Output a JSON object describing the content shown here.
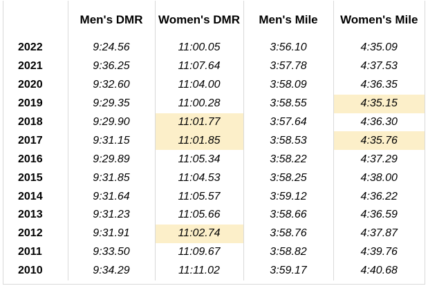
{
  "table": {
    "headers": [
      "",
      "Men's DMR",
      "Women's DMR",
      "Men's Mile",
      "Women's Mile"
    ],
    "highlight_color": "#fcefc9",
    "rows": [
      {
        "year": "2022",
        "mens_dmr": "9:24.56",
        "womens_dmr": "11:00.05",
        "mens_mile": "3:56.10",
        "womens_mile": "4:35.09"
      },
      {
        "year": "2021",
        "mens_dmr": "9:36.25",
        "womens_dmr": "11:07.64",
        "mens_mile": "3:57.78",
        "womens_mile": "4:37.53"
      },
      {
        "year": "2020",
        "mens_dmr": "9:32.60",
        "womens_dmr": "11:04.00",
        "mens_mile": "3:58.09",
        "womens_mile": "4:36.35"
      },
      {
        "year": "2019",
        "mens_dmr": "9:29.35",
        "womens_dmr": "11:00.28",
        "mens_mile": "3:58.55",
        "womens_mile": "4:35.15",
        "highlight": [
          "womens_mile"
        ]
      },
      {
        "year": "2018",
        "mens_dmr": "9:29.90",
        "womens_dmr": "11:01.77",
        "mens_mile": "3:57.64",
        "womens_mile": "4:36.30",
        "highlight": [
          "womens_dmr"
        ]
      },
      {
        "year": "2017",
        "mens_dmr": "9:31.15",
        "womens_dmr": "11:01.85",
        "mens_mile": "3:58.53",
        "womens_mile": "4:35.76",
        "highlight": [
          "womens_dmr",
          "womens_mile"
        ]
      },
      {
        "year": "2016",
        "mens_dmr": "9:29.89",
        "womens_dmr": "11:05.34",
        "mens_mile": "3:58.22",
        "womens_mile": "4:37.29"
      },
      {
        "year": "2015",
        "mens_dmr": "9:31.85",
        "womens_dmr": "11:04.53",
        "mens_mile": "3:58.25",
        "womens_mile": "4:38.00"
      },
      {
        "year": "2014",
        "mens_dmr": "9:31.64",
        "womens_dmr": "11:05.57",
        "mens_mile": "3:59.12",
        "womens_mile": "4:36.22"
      },
      {
        "year": "2013",
        "mens_dmr": "9:31.23",
        "womens_dmr": "11:05.66",
        "mens_mile": "3:58.66",
        "womens_mile": "4:36.59"
      },
      {
        "year": "2012",
        "mens_dmr": "9:31.91",
        "womens_dmr": "11:02.74",
        "mens_mile": "3:58.76",
        "womens_mile": "4:37.87",
        "highlight": [
          "womens_dmr"
        ]
      },
      {
        "year": "2011",
        "mens_dmr": "9:33.50",
        "womens_dmr": "11:09.67",
        "mens_mile": "3:58.82",
        "womens_mile": "4:39.76"
      },
      {
        "year": "2010",
        "mens_dmr": "9:34.29",
        "womens_dmr": "11:11.02",
        "mens_mile": "3:59.17",
        "womens_mile": "4:40.68"
      }
    ]
  }
}
